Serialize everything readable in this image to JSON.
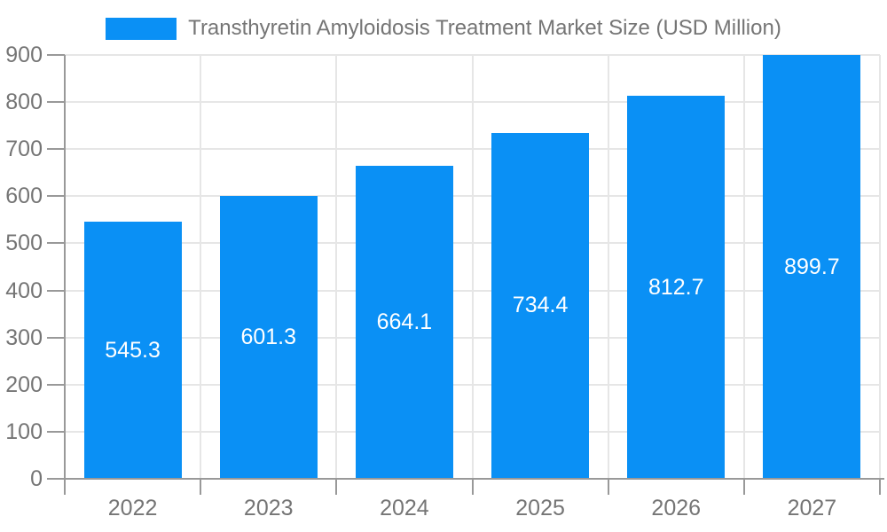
{
  "chart_data": {
    "type": "bar",
    "title": "Transthyretin Amyloidosis Treatment Market Size (USD Million)",
    "categories": [
      "2022",
      "2023",
      "2024",
      "2025",
      "2026",
      "2027"
    ],
    "values": [
      545.3,
      601.3,
      664.1,
      734.4,
      812.7,
      899.7
    ],
    "value_labels": [
      "545.3",
      "601.3",
      "664.1",
      "734.4",
      "812.7",
      "899.7"
    ],
    "xlabel": "",
    "ylabel": "",
    "ylim": [
      0,
      900
    ],
    "yticks": [
      0,
      100,
      200,
      300,
      400,
      500,
      600,
      700,
      800,
      900
    ],
    "grid": true,
    "legend_position": "top-center",
    "colors": {
      "bar": "#0a90f5",
      "axis": "#999999",
      "gridline": "#e6e6e6",
      "axis_label": "#757575",
      "value_label": "#ffffff",
      "background": "#ffffff"
    }
  }
}
